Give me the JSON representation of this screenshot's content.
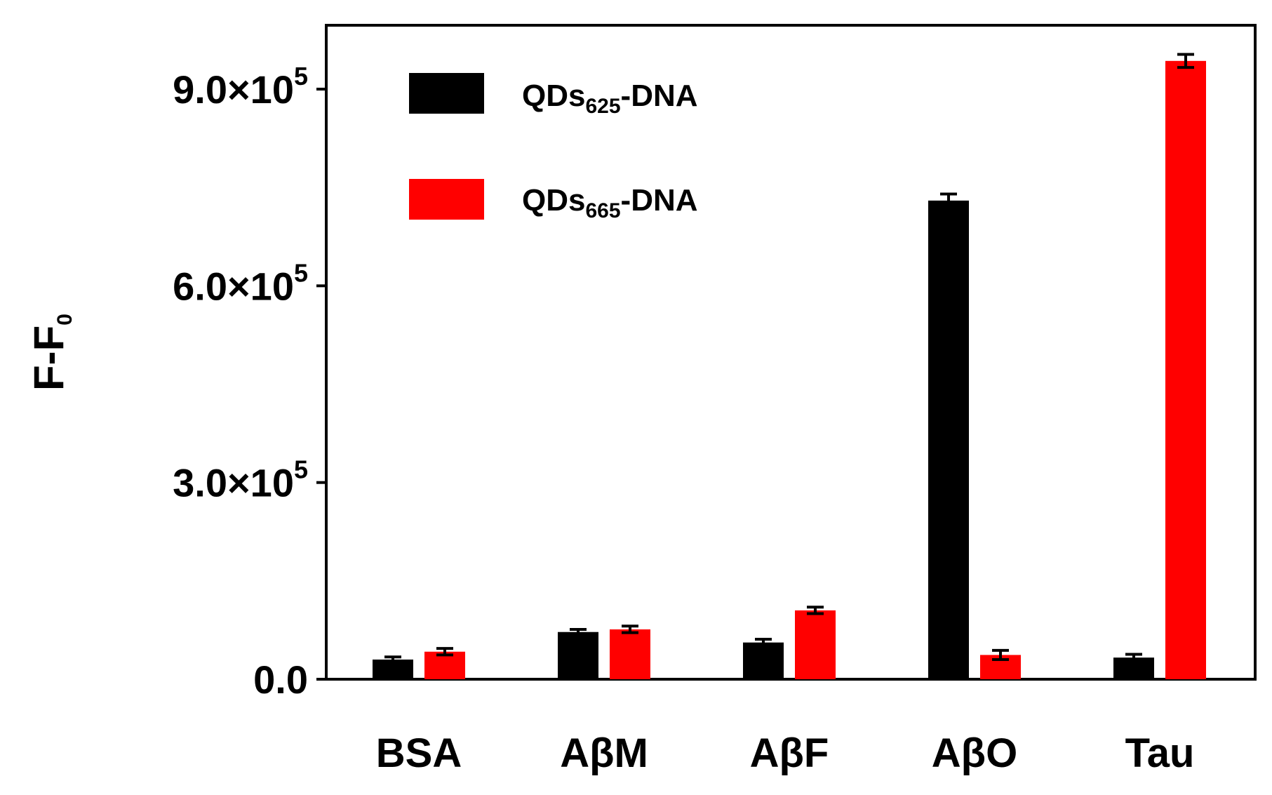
{
  "chart_data": {
    "type": "bar",
    "categories": [
      "BSA",
      "AβM",
      "AβF",
      "AβO",
      "Tau"
    ],
    "ylabel": "F-F",
    "ylabel_subscript": "0",
    "ylim": [
      0,
      1000000
    ],
    "yticks": [
      {
        "value": 0,
        "label": "0.0",
        "exp": ""
      },
      {
        "value": 300000,
        "label": "3.0×10",
        "exp": "5"
      },
      {
        "value": 600000,
        "label": "6.0×10",
        "exp": "5"
      },
      {
        "value": 900000,
        "label": "9.0×10",
        "exp": "5"
      }
    ],
    "legend_position": "top-left",
    "grid": false,
    "series": [
      {
        "name": "QDs-DNA",
        "name_prefix": "QDs",
        "name_subscript": "625",
        "name_suffix": "-DNA",
        "color": "#000000",
        "values": [
          30000,
          72000,
          56000,
          730000,
          33000
        ],
        "errors": [
          4000,
          4000,
          5000,
          10000,
          5000
        ]
      },
      {
        "name": "QDs-DNA",
        "name_prefix": "QDs",
        "name_subscript": "665",
        "name_suffix": "-DNA",
        "color": "#ff0000",
        "values": [
          42000,
          76000,
          105000,
          37000,
          943000
        ],
        "errors": [
          5000,
          5000,
          5000,
          7000,
          10000
        ]
      }
    ]
  }
}
